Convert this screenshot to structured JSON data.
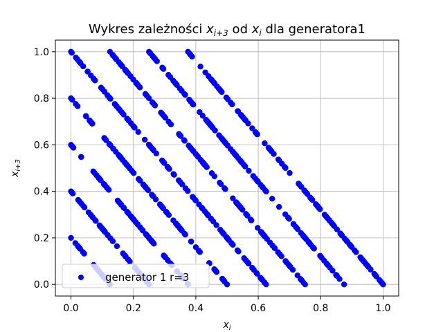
{
  "chart_data": {
    "type": "scatter",
    "title": "Wykres zależności x_{i+3} od x_i dla generatora1",
    "title_parts": {
      "prefix": "Wykres zależności ",
      "var1_base": "x",
      "var1_sub": "i+3",
      "middle": " od ",
      "var2_base": "x",
      "var2_sub": "i",
      "suffix": " dla generatora1"
    },
    "xlabel": {
      "base": "x",
      "sub": "i"
    },
    "ylabel": {
      "base": "x",
      "sub": "i+3"
    },
    "xlim": [
      -0.05,
      1.05
    ],
    "ylim": [
      -0.05,
      1.05
    ],
    "xticks": [
      0.0,
      0.2,
      0.4,
      0.6,
      0.8,
      1.0
    ],
    "yticks": [
      0.0,
      0.2,
      0.4,
      0.6,
      0.8,
      1.0
    ],
    "xtick_labels": [
      "0.0",
      "0.2",
      "0.4",
      "0.6",
      "0.8",
      "1.0"
    ],
    "ytick_labels": [
      "0.0",
      "0.2",
      "0.4",
      "0.6",
      "0.8",
      "1.0"
    ],
    "grid": true,
    "legend_position": "lower-left",
    "relation": "x_{i+3} = frac(c - 1.6 * x_i)",
    "line_offsets": [
      0.2,
      0.4,
      0.6,
      0.8,
      1.0,
      1.2,
      1.4,
      1.6
    ],
    "slope": -1.6,
    "series": [
      {
        "name": "generator 1 r=3",
        "color": "#0000ff",
        "marker": "circle"
      }
    ]
  }
}
